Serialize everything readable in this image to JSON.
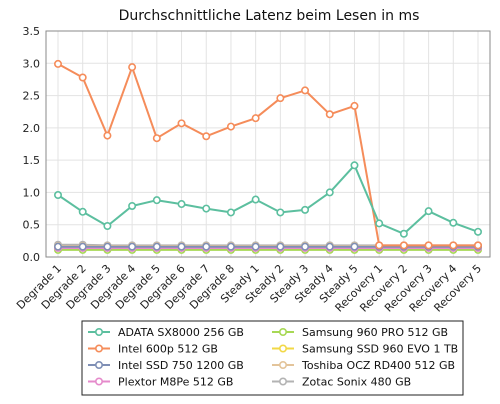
{
  "chart_data": {
    "type": "line",
    "title": "Durchschnittliche Latenz beim Lesen in ms",
    "xlabel": "",
    "ylabel": "",
    "ylim": [
      0,
      3.5
    ],
    "yticks": [
      "0.0",
      "0.5",
      "1.0",
      "1.5",
      "2.0",
      "2.5",
      "3.0",
      "3.5"
    ],
    "grid": true,
    "legend_position": "bottom",
    "categories": [
      "Degrade 1",
      "Degrade 2",
      "Degrade 3",
      "Degrade 4",
      "Degrade 5",
      "Degrade 6",
      "Degrade 7",
      "Degrade 8",
      "Steady 1",
      "Steady 2",
      "Steady 3",
      "Steady 4",
      "Steady 5",
      "Recovery 1",
      "Recovery 2",
      "Recovery 3",
      "Recovery 4",
      "Recovery 5"
    ],
    "series": [
      {
        "name": "ADATA SX8000 256 GB",
        "color": "#5cbf9f",
        "values": [
          0.96,
          0.7,
          0.48,
          0.79,
          0.88,
          0.82,
          0.75,
          0.69,
          0.89,
          0.69,
          0.73,
          1.0,
          1.42,
          0.52,
          0.36,
          0.71,
          0.53,
          0.39
        ]
      },
      {
        "name": "Intel 600p 512 GB",
        "color": "#f58c5a",
        "values": [
          2.99,
          2.78,
          1.88,
          2.94,
          1.84,
          2.07,
          1.87,
          2.02,
          2.15,
          2.46,
          2.58,
          2.21,
          2.34,
          0.18,
          0.18,
          0.18,
          0.18,
          0.18
        ]
      },
      {
        "name": "Intel SSD 750 1200 GB",
        "color": "#7f8fb5",
        "values": [
          0.16,
          0.16,
          0.16,
          0.16,
          0.16,
          0.16,
          0.16,
          0.16,
          0.16,
          0.16,
          0.16,
          0.16,
          0.16,
          0.16,
          0.16,
          0.16,
          0.16,
          0.16
        ]
      },
      {
        "name": "Plextor M8Pe 512 GB",
        "color": "#e58acb",
        "values": [
          0.14,
          0.14,
          0.14,
          0.14,
          0.14,
          0.14,
          0.14,
          0.14,
          0.14,
          0.14,
          0.14,
          0.14,
          0.14,
          0.14,
          0.14,
          0.14,
          0.14,
          0.14
        ]
      },
      {
        "name": "Samsung 960 PRO 512 GB",
        "color": "#a7d855",
        "values": [
          0.11,
          0.11,
          0.11,
          0.11,
          0.11,
          0.11,
          0.11,
          0.11,
          0.11,
          0.11,
          0.11,
          0.11,
          0.11,
          0.11,
          0.11,
          0.11,
          0.11,
          0.11
        ]
      },
      {
        "name": "Samsung SSD 960 EVO 1 TB",
        "color": "#f2d846",
        "values": [
          0.15,
          0.15,
          0.15,
          0.15,
          0.15,
          0.15,
          0.15,
          0.15,
          0.15,
          0.15,
          0.15,
          0.15,
          0.15,
          0.15,
          0.15,
          0.15,
          0.15,
          0.15
        ]
      },
      {
        "name": "Toshiba OCZ RD400 512 GB",
        "color": "#e3c49a",
        "values": [
          0.17,
          0.17,
          0.17,
          0.17,
          0.17,
          0.17,
          0.17,
          0.17,
          0.17,
          0.17,
          0.17,
          0.17,
          0.17,
          0.17,
          0.17,
          0.17,
          0.17,
          0.17
        ]
      },
      {
        "name": "Zotac Sonix 480 GB",
        "color": "#b3b3b3",
        "values": [
          0.19,
          0.19,
          0.18,
          0.18,
          0.18,
          0.18,
          0.18,
          0.18,
          0.18,
          0.18,
          0.18,
          0.18,
          0.18,
          0.18,
          0.18,
          0.18,
          0.18,
          0.18
        ]
      }
    ]
  }
}
